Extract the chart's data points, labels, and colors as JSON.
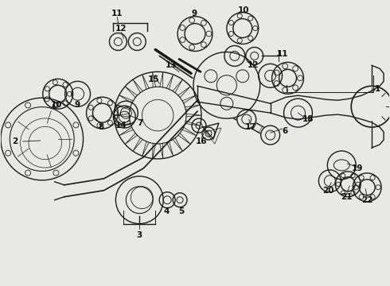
{
  "bg_color": "#e8e8e4",
  "line_color": "#1a1a1a",
  "label_color": "#111111",
  "fig_width": 4.9,
  "fig_height": 3.6,
  "dpi": 100
}
